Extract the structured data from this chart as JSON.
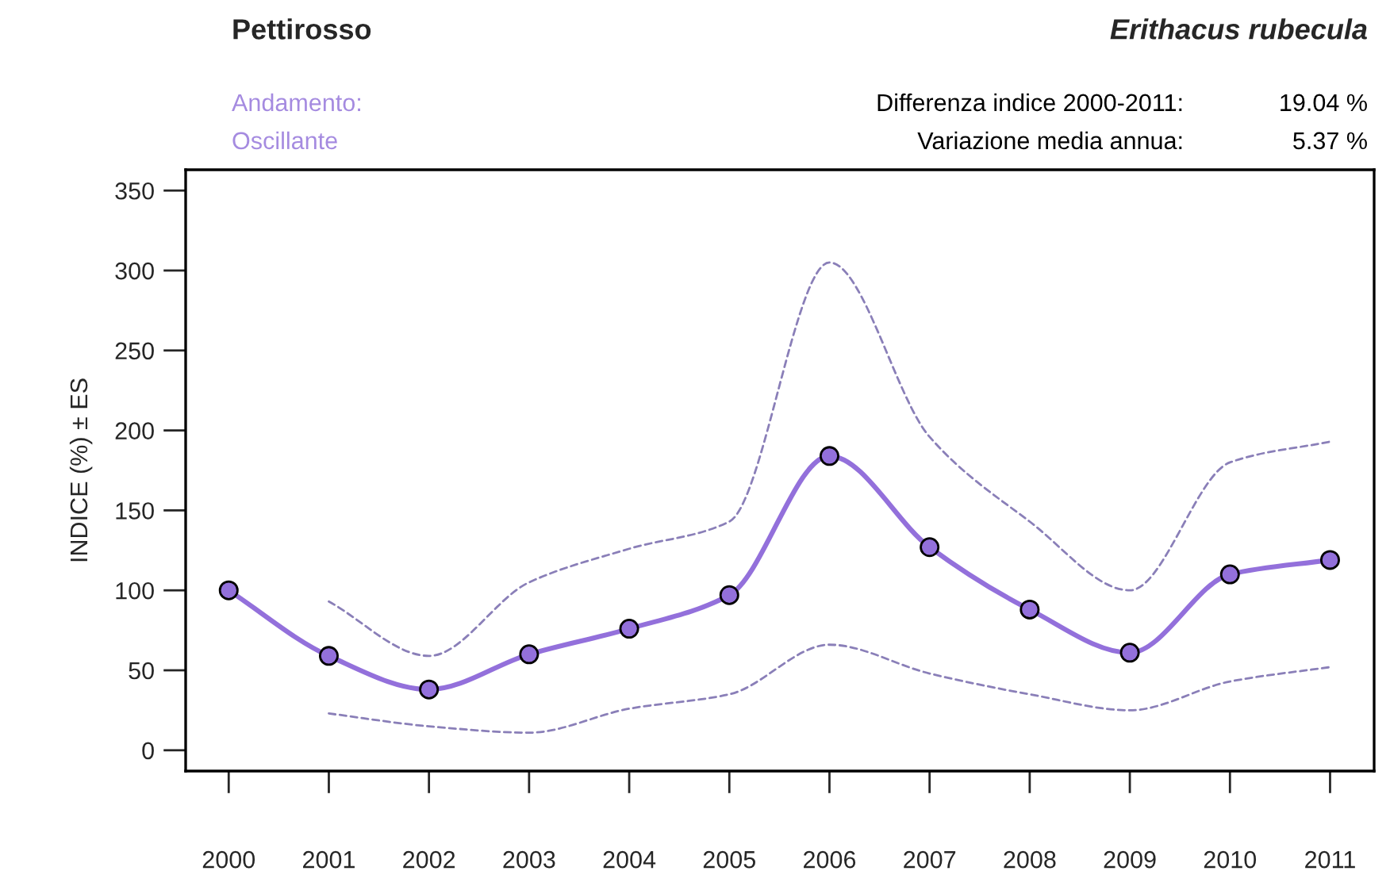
{
  "chart_data": {
    "type": "line",
    "title": "Pettirosso",
    "subtitle": "Erithacus rubecula",
    "ylabel": "INDICE (%) ± ES",
    "annotations": [
      "Andamento:",
      "Oscillante",
      "Differenza indice 2000-2011:",
      "19.04 %",
      "Variazione media annua:",
      "5.37 %"
    ],
    "x": [
      2000,
      2001,
      2002,
      2003,
      2004,
      2005,
      2006,
      2007,
      2008,
      2009,
      2010,
      2011
    ],
    "series": [
      {
        "color": "#9370db",
        "values": [
          100,
          59,
          38,
          60,
          76,
          97,
          184,
          127,
          88,
          61,
          110,
          119
        ]
      },
      {
        "color": "#8a7fb8",
        "line_style": "dashed",
        "marker": "none",
        "x": [
          2001,
          2002,
          2003,
          2004,
          2005,
          2006,
          2007,
          2008,
          2009,
          2010,
          2011
        ],
        "values": [
          93,
          59,
          105,
          126,
          143,
          305,
          196,
          143,
          100,
          180,
          193
        ]
      },
      {
        "color": "#8a7fb8",
        "line_style": "dashed",
        "marker": "none",
        "x": [
          2001,
          2002,
          2003,
          2004,
          2005,
          2006,
          2007,
          2008,
          2009,
          2010,
          2011
        ],
        "values": [
          23,
          15,
          11,
          26,
          35,
          66,
          48,
          35,
          25,
          43,
          52
        ]
      }
    ],
    "xlim": [
      1999.57,
      2011.44
    ],
    "xticks": [
      2000,
      2001,
      2002,
      2003,
      2004,
      2005,
      2006,
      2007,
      2008,
      2009,
      2010,
      2011
    ],
    "ylim": [
      -13,
      363
    ],
    "yticks": [
      0,
      50,
      100,
      150,
      200,
      250,
      300,
      350
    ],
    "grid": false,
    "legend": false,
    "marker": "circle",
    "line_style": "solid"
  }
}
